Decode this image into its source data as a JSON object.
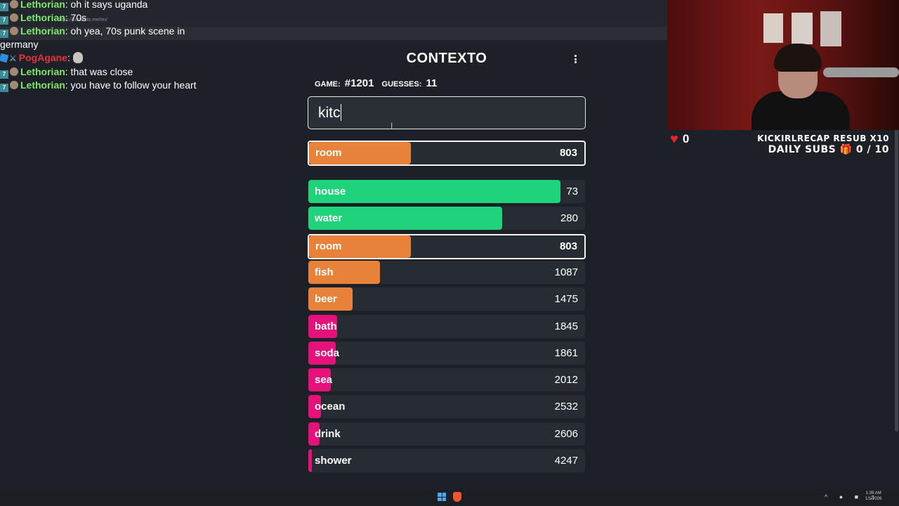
{
  "browser": {
    "url": "https://contexto.me/en/"
  },
  "chat": {
    "messages": [
      {
        "badge": "7tv",
        "user": "Lethorian",
        "text": ": oh it says uganda",
        "color": "#7ee86b"
      },
      {
        "badge": "7tv",
        "user": "Lethorian",
        "text": ": 70s",
        "color": "#7ee86b"
      },
      {
        "badge": "7tv",
        "user": "Lethorian",
        "text": ": oh yea, 70s punk scene in",
        "color": "#7ee86b"
      },
      {
        "badge": "none",
        "user": "",
        "text": "germany",
        "color": "#ffffff"
      },
      {
        "badge": "cube-sword",
        "user": "PogAgane",
        "text": ":",
        "color": "#e5323c"
      },
      {
        "badge": "7tv",
        "user": "Lethorian",
        "text": ": that was close",
        "color": "#7ee86b"
      },
      {
        "badge": "7tv",
        "user": "Lethorian",
        "text": ": you have to follow your heart",
        "color": "#7ee86b"
      }
    ]
  },
  "game": {
    "title": "CONTEXTO",
    "game_label": "GAME:",
    "game_number": "#1201",
    "guesses_label": "GUESSES:",
    "guesses_count": "11",
    "input_value": "kitc",
    "last_guess": {
      "word": "room",
      "rank": "803",
      "color": "#e8823a",
      "fill": 0.37
    },
    "guesses": [
      {
        "word": "house",
        "rank": "73",
        "color": "#1ed37a",
        "fill": 0.91
      },
      {
        "word": "water",
        "rank": "280",
        "color": "#1ed37a",
        "fill": 0.7
      },
      {
        "word": "room",
        "rank": "803",
        "color": "#e8823a",
        "fill": 0.37,
        "highlight": true
      },
      {
        "word": "fish",
        "rank": "1087",
        "color": "#e8823a",
        "fill": 0.26
      },
      {
        "word": "beer",
        "rank": "1475",
        "color": "#e8823a",
        "fill": 0.16
      },
      {
        "word": "bath",
        "rank": "1845",
        "color": "#e5127b",
        "fill": 0.105
      },
      {
        "word": "soda",
        "rank": "1861",
        "color": "#e5127b",
        "fill": 0.1
      },
      {
        "word": "sea",
        "rank": "2012",
        "color": "#e5127b",
        "fill": 0.08
      },
      {
        "word": "ocean",
        "rank": "2532",
        "color": "#e5127b",
        "fill": 0.045
      },
      {
        "word": "drink",
        "rank": "2606",
        "color": "#e5127b",
        "fill": 0.04
      },
      {
        "word": "shower",
        "rank": "4247",
        "color": "#e5127b",
        "fill": 0.012
      }
    ]
  },
  "overlay": {
    "hearts": "0",
    "goal_line1": "KICKIRLRECAP RESUB X10",
    "goal_line2_prefix": "DAILY SUBS",
    "goal_line2_value": "0 / 10"
  },
  "taskbar": {
    "time": "1:39 AM",
    "date": "1/1/2026"
  }
}
